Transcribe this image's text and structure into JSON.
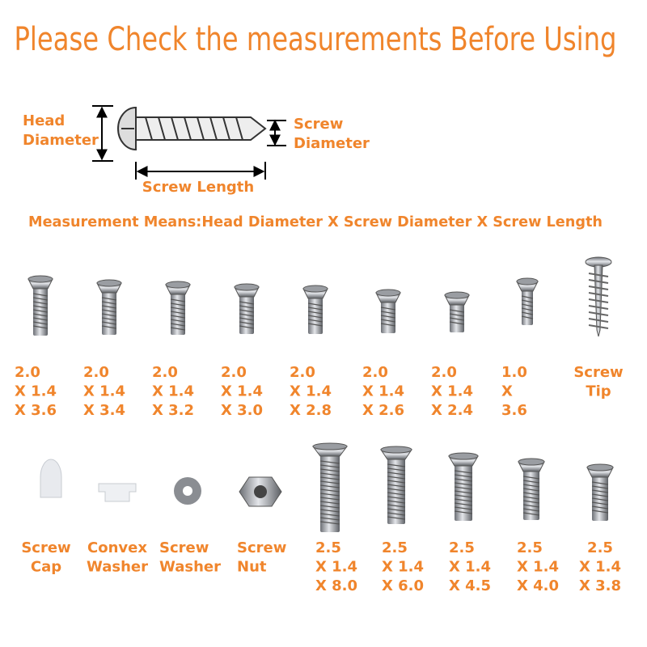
{
  "title": "Please Check the measurements Before Using",
  "diagram": {
    "head_diameter": [
      "Head",
      "Diameter"
    ],
    "screw_diameter": [
      "Screw",
      "Diameter"
    ],
    "screw_length": "Screw Length"
  },
  "measurement_note": "Measurement Means:Head Diameter X Screw Diameter X Screw Length",
  "items_top": [
    [
      "2.0",
      "X 1.4",
      "X 3.6"
    ],
    [
      "2.0",
      "X 1.4",
      "X 3.4"
    ],
    [
      "2.0",
      "X 1.4",
      "X 3.2"
    ],
    [
      "2.0",
      "X 1.4",
      "X 3.0"
    ],
    [
      "2.0",
      "X 1.4",
      "X 2.8"
    ],
    [
      "2.0",
      "X 1.4",
      "X 2.6"
    ],
    [
      "2.0",
      "X 1.4",
      "X 2.4"
    ],
    [
      "1.0",
      "X",
      "3.6"
    ],
    [
      "Screw",
      "Tip"
    ]
  ],
  "items_bottom": [
    [
      "Screw",
      "Cap"
    ],
    [
      "Convex",
      "Washer"
    ],
    [
      "Screw",
      "Washer"
    ],
    [
      "Screw",
      "Nut"
    ],
    [
      "2.5",
      "X 1.4",
      "X 8.0"
    ],
    [
      "2.5",
      "X 1.4",
      "X 6.0"
    ],
    [
      "2.5",
      "X 1.4",
      "X 4.5"
    ],
    [
      "2.5",
      "X 1.4",
      "X 4.0"
    ],
    [
      "2.5",
      "X 1.4",
      "X 3.8"
    ]
  ]
}
